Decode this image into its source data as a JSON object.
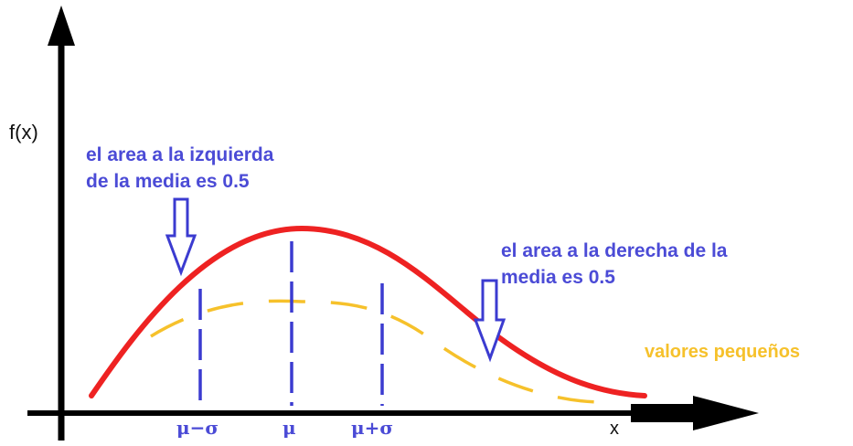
{
  "axes": {
    "y_label": "f(x)",
    "x_label": "x"
  },
  "annotations": {
    "left_line1": "el area a la izquierda",
    "left_line2": "de la media es 0.5",
    "right_line1": "el area a la derecha de la",
    "right_line2": "media es 0.5",
    "small_values": "valores pequeños"
  },
  "ticks": {
    "mu_minus_sigma": "μ−σ",
    "mu": "μ",
    "mu_plus_sigma": "μ+σ"
  },
  "colors": {
    "axis": "#000000",
    "main_curve": "#ee2222",
    "secondary_curve": "#f6c12b",
    "guides": "#3b3bd0",
    "annotation_text": "#4b4bd6"
  },
  "icons": [
    "down-arrow-icon"
  ]
}
